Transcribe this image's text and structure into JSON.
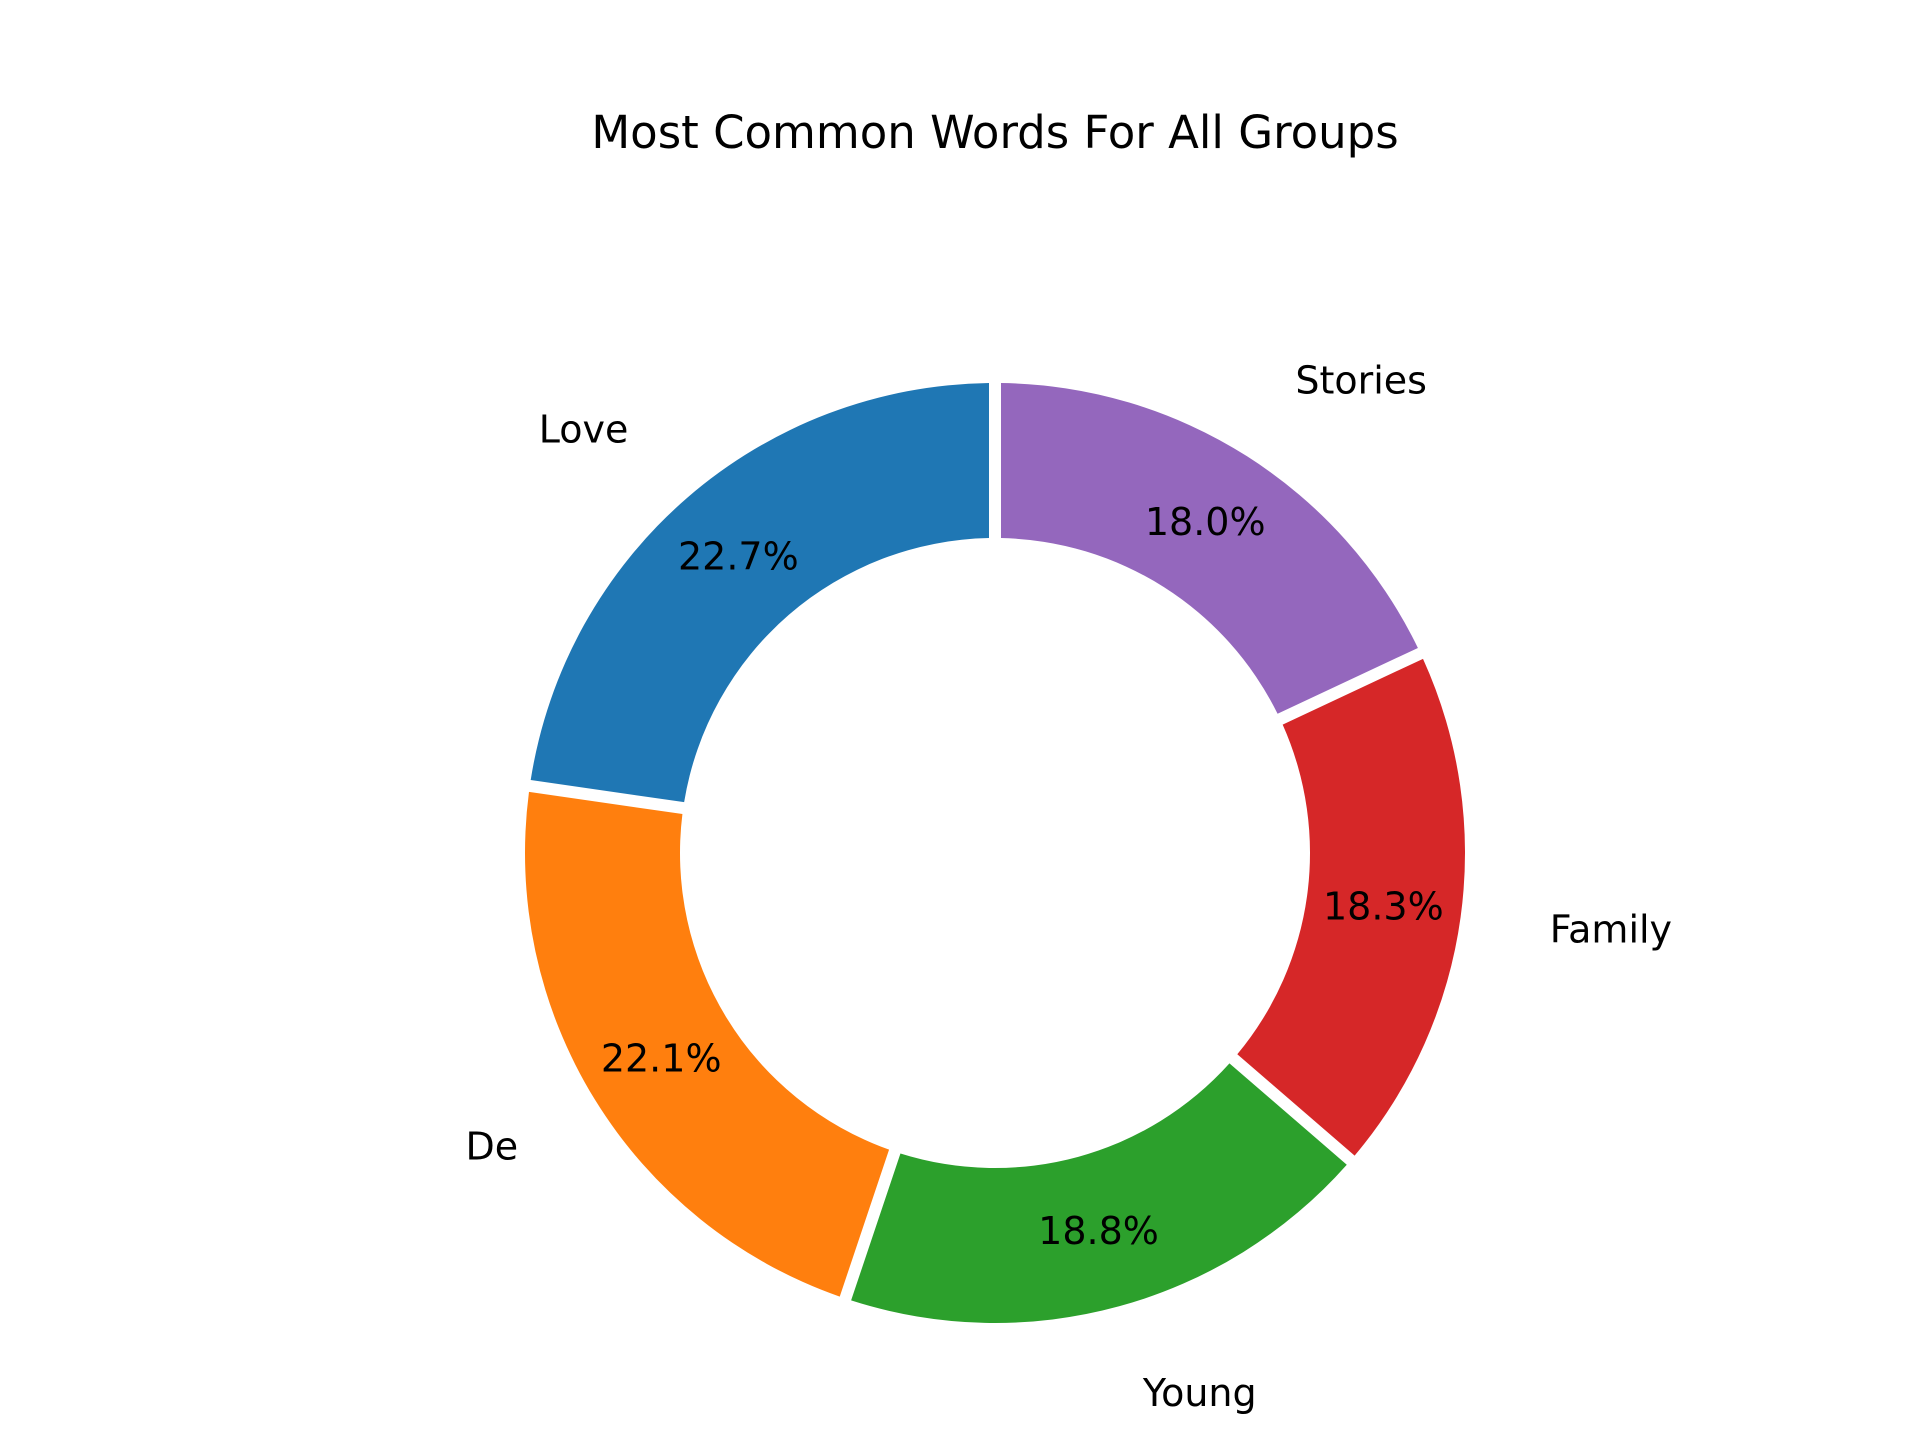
{
  "chart_data": {
    "type": "pie",
    "title": "Most Common Words For All Groups",
    "donut": true,
    "start_angle": 90,
    "direction": "counterclockwise",
    "categories": [
      "Love",
      "De",
      "Young",
      "Family",
      "Stories"
    ],
    "values": [
      22.7,
      22.1,
      18.8,
      18.3,
      18.0
    ],
    "value_labels": [
      "22.7%",
      "22.1%",
      "18.8%",
      "18.3%",
      "18.0%"
    ],
    "colors": [
      "#1f77b4",
      "#ff7f0e",
      "#2ca02c",
      "#d62728",
      "#9467bd"
    ],
    "legend": "none"
  }
}
